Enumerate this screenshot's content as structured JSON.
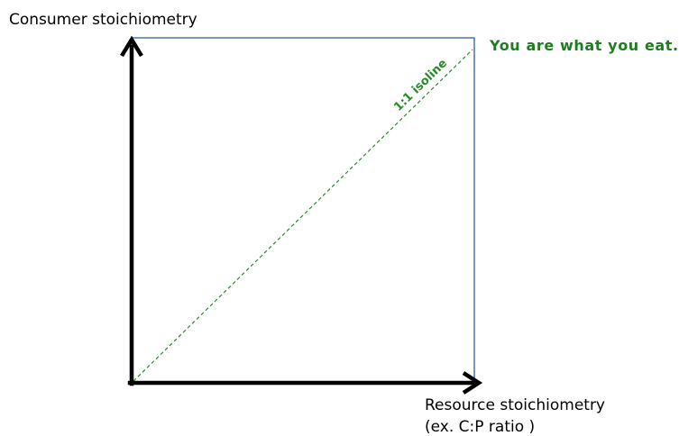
{
  "axes": {
    "y_label": "Consumer stoichiometry",
    "x_label_line1": "Resource stoichiometry",
    "x_label_line2": "(ex. C:P ratio )"
  },
  "isoline": {
    "label": "1:1 isoline"
  },
  "annotation": {
    "tagline": "You are what you eat."
  },
  "colors": {
    "axis": "#000000",
    "box_border": "#4a72b0",
    "isoline": "#2a8a2a",
    "tagline": "#1e7d1e"
  }
}
